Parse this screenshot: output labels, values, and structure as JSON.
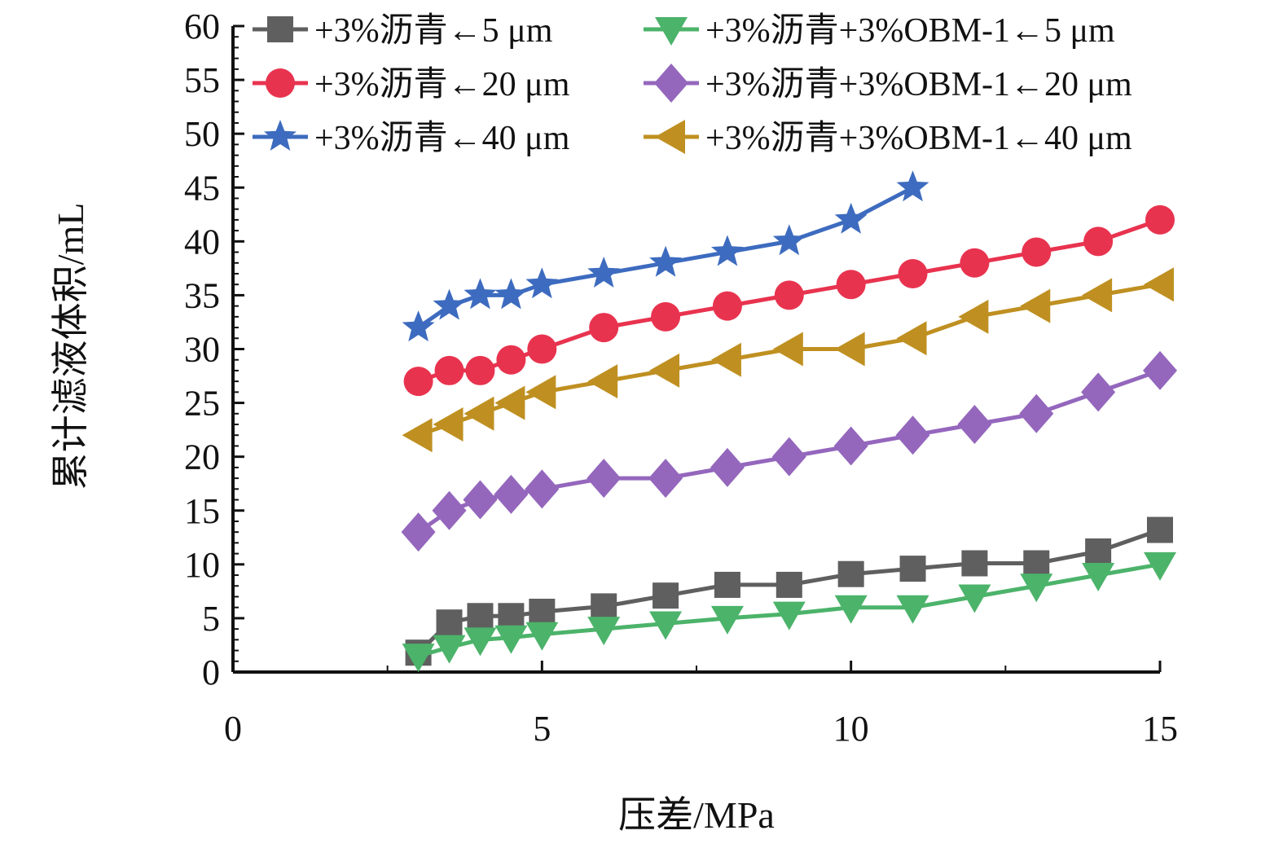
{
  "chart_data": {
    "type": "line",
    "title": "",
    "xlabel": "压差/MPa",
    "ylabel": "累计滤液体积/mL",
    "xlim": [
      0,
      15
    ],
    "ylim": [
      0,
      60
    ],
    "xticks": [
      "0",
      "5",
      "10",
      "15"
    ],
    "yticks": [
      "0",
      "5",
      "10",
      "15",
      "20",
      "25",
      "30",
      "35",
      "40",
      "45",
      "50",
      "55",
      "60"
    ],
    "grid": false,
    "legend_position": "top",
    "series": [
      {
        "name": "+3%沥青←5 μm",
        "color": "#5f5f5f",
        "marker": "square",
        "x": [
          3,
          3.5,
          4,
          4.5,
          5,
          6,
          7,
          8,
          9,
          10,
          11,
          12,
          13,
          14,
          15
        ],
        "y": [
          1.8,
          4.6,
          5.2,
          5.2,
          5.6,
          6.1,
          7.1,
          8.1,
          8.1,
          9.1,
          9.6,
          10.1,
          10.1,
          11.2,
          13.2
        ]
      },
      {
        "name": "+3%沥青←20 μm",
        "color": "#e8334f",
        "marker": "circle",
        "x": [
          3,
          3.5,
          4,
          4.5,
          5,
          6,
          7,
          8,
          9,
          10,
          11,
          12,
          13,
          14,
          15
        ],
        "y": [
          27,
          28,
          28,
          29,
          30,
          32,
          33,
          34,
          35,
          36,
          37,
          38,
          39,
          40,
          42
        ]
      },
      {
        "name": "+3%沥青←40 μm",
        "color": "#3d6bbf",
        "marker": "star",
        "x": [
          3,
          3.5,
          4,
          4.5,
          5,
          6,
          7,
          8,
          9,
          10,
          11
        ],
        "y": [
          32,
          34,
          35,
          35,
          36,
          37,
          38,
          39,
          40,
          42,
          45
        ]
      },
      {
        "name": "+3%沥青+3%OBM-1←5 μm",
        "color": "#4cb36a",
        "marker": "triangle-down",
        "x": [
          3,
          3.5,
          4,
          4.5,
          5,
          6,
          7,
          8,
          9,
          10,
          11,
          12,
          13,
          14,
          15
        ],
        "y": [
          1.5,
          2.3,
          3,
          3.2,
          3.5,
          4,
          4.5,
          5,
          5.4,
          6,
          6,
          7,
          8,
          9,
          10
        ]
      },
      {
        "name": "+3%沥青+3%OBM-1←20 μm",
        "color": "#9467bd",
        "marker": "diamond",
        "x": [
          3,
          3.5,
          4,
          4.5,
          5,
          6,
          7,
          8,
          9,
          10,
          11,
          12,
          13,
          14,
          15
        ],
        "y": [
          13,
          15,
          16,
          16.5,
          17,
          18,
          18,
          19,
          20,
          21,
          22,
          23,
          24,
          26,
          28
        ]
      },
      {
        "name": "+3%沥青+3%OBM-1←40 μm",
        "color": "#bf9021",
        "marker": "triangle-left",
        "x": [
          3,
          3.5,
          4,
          4.5,
          5,
          6,
          7,
          8,
          9,
          10,
          11,
          12,
          13,
          14,
          15
        ],
        "y": [
          22,
          23,
          24,
          25,
          26,
          27,
          28,
          29,
          30,
          30,
          31,
          33,
          34,
          35,
          36
        ]
      }
    ]
  }
}
